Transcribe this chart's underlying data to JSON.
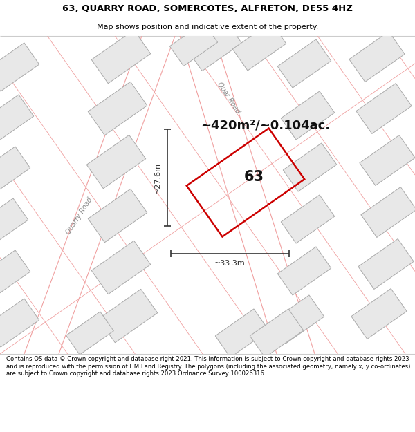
{
  "title_line1": "63, QUARRY ROAD, SOMERCOTES, ALFRETON, DE55 4HZ",
  "title_line2": "Map shows position and indicative extent of the property.",
  "footer": "Contains OS data © Crown copyright and database right 2021. This information is subject to Crown copyright and database rights 2023 and is reproduced with the permission of HM Land Registry. The polygons (including the associated geometry, namely x, y co-ordinates) are subject to Crown copyright and database rights 2023 Ordnance Survey 100026316.",
  "area_text": "~420m²/~0.104ac.",
  "dim_h": "~27.6m",
  "dim_w": "~33.3m",
  "plot_label": "63",
  "road_label_left": "Quarry Road",
  "road_label_right": "Quar Road",
  "bg_color": "#ffffff",
  "map_bg": "#ffffff",
  "plot_color": "#cc0000",
  "building_fill": "#e8e8e8",
  "building_edge": "#aaaaaa",
  "plot_boundary_color": "#f0a0a0",
  "road_boundary_color": "#f0a0a0",
  "dim_line_color": "#333333",
  "area_text_color": "#111111",
  "label_color": "#111111"
}
